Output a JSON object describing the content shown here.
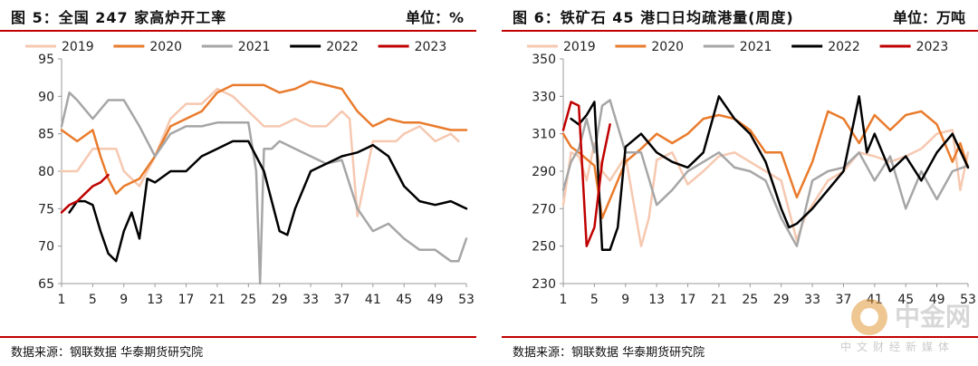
{
  "charts": [
    {
      "title": "图 5：全国 247 家高炉开工率",
      "unit": "单位：%",
      "source": "数据来源：钢联数据 华泰期货研究院"
    },
    {
      "title": "图 6：铁矿石 45 港口日均疏港量(周度)",
      "unit": "单位：万吨",
      "source": "数据来源：钢联数据 华泰期货研究院"
    }
  ],
  "watermark": {
    "title": "中金网",
    "subtitle": "中文财经新媒体"
  },
  "chart_data": [
    {
      "type": "line",
      "title": "图 5：全国 247 家高炉开工率",
      "unit": "%",
      "x_ticks": [
        1,
        5,
        9,
        13,
        17,
        21,
        25,
        29,
        33,
        37,
        41,
        45,
        49,
        53
      ],
      "y_ticks": [
        65,
        70,
        75,
        80,
        85,
        90,
        95
      ],
      "xlim": [
        1,
        53
      ],
      "ylim": [
        65,
        95
      ],
      "legend_position": "top",
      "series": [
        {
          "name": "2019",
          "color": "#f6c8b0",
          "width": 2.5,
          "x": [
            1,
            3,
            5,
            7,
            8,
            9,
            11,
            12,
            13,
            15,
            17,
            19,
            21,
            23,
            25,
            27,
            29,
            31,
            33,
            35,
            37,
            38,
            39,
            41,
            43,
            44,
            45,
            47,
            49,
            51,
            52
          ],
          "y": [
            80,
            80,
            83,
            83,
            83,
            80,
            78,
            80,
            82,
            87,
            89,
            89,
            91,
            90,
            88,
            86,
            86,
            87,
            86,
            86,
            88,
            87,
            74,
            84,
            84,
            84,
            85,
            86,
            84,
            85,
            84
          ]
        },
        {
          "name": "2020",
          "color": "#e97b2c",
          "width": 2.5,
          "x": [
            1,
            3,
            5,
            6,
            7,
            8,
            9,
            11,
            13,
            15,
            17,
            19,
            21,
            23,
            25,
            27,
            29,
            31,
            33,
            35,
            37,
            39,
            41,
            43,
            45,
            47,
            49,
            51,
            53
          ],
          "y": [
            85.5,
            84,
            85.5,
            82,
            79,
            77,
            78,
            79,
            82,
            86,
            87,
            88,
            90.5,
            91.5,
            91.5,
            91.5,
            90.5,
            91,
            92,
            91.5,
            91,
            88,
            86,
            87,
            86.5,
            86.5,
            86,
            85.5,
            85.5
          ]
        },
        {
          "name": "2021",
          "color": "#a6a6a6",
          "width": 2.5,
          "x": [
            1,
            2,
            3,
            5,
            7,
            9,
            11,
            13,
            15,
            17,
            19,
            21,
            23,
            25,
            26,
            26.5,
            27,
            28,
            29,
            31,
            33,
            35,
            37,
            39,
            41,
            43,
            45,
            47,
            49,
            51,
            52,
            53
          ],
          "y": [
            86,
            90.5,
            89.5,
            87,
            89.5,
            89.5,
            86,
            82,
            85,
            86,
            86,
            86.5,
            86.5,
            86.5,
            80,
            65,
            83,
            83,
            84,
            83,
            82,
            81,
            81.5,
            75,
            72,
            73,
            71,
            69.5,
            69.5,
            68,
            68,
            71
          ]
        },
        {
          "name": "2022",
          "color": "#000000",
          "width": 2.5,
          "x": [
            2,
            3,
            4,
            5,
            6,
            7,
            8,
            9,
            10,
            11,
            12,
            13,
            15,
            17,
            19,
            21,
            23,
            25,
            27,
            29,
            30,
            31,
            33,
            35,
            37,
            39,
            40,
            41,
            43,
            45,
            47,
            49,
            51,
            53
          ],
          "y": [
            74.5,
            76,
            76,
            75.5,
            72,
            69,
            68,
            72,
            74.5,
            71,
            79,
            78.5,
            80,
            80,
            82,
            83,
            84,
            84,
            80,
            72,
            71.5,
            75,
            80,
            81,
            82,
            82.5,
            83,
            83.5,
            82,
            78,
            76,
            75.5,
            76,
            75
          ]
        },
        {
          "name": "2023",
          "color": "#c00000",
          "width": 2.5,
          "x": [
            1,
            2,
            3,
            4,
            5,
            6,
            7
          ],
          "y": [
            74.5,
            75.5,
            76,
            77,
            78,
            78.5,
            79.5
          ]
        }
      ]
    },
    {
      "type": "line",
      "title": "图 6：铁矿石 45 港口日均疏港量(周度)",
      "unit": "万吨",
      "x_ticks": [
        1,
        5,
        9,
        13,
        17,
        21,
        25,
        29,
        33,
        37,
        41,
        45,
        49,
        53
      ],
      "y_ticks": [
        230,
        250,
        270,
        290,
        310,
        330,
        350
      ],
      "xlim": [
        1,
        53
      ],
      "ylim": [
        230,
        350
      ],
      "legend_position": "top",
      "series": [
        {
          "name": "2019",
          "color": "#f6c8b0",
          "width": 2.5,
          "x": [
            1,
            2,
            3,
            4,
            5,
            6,
            7,
            9,
            11,
            12,
            13,
            15,
            17,
            19,
            21,
            23,
            25,
            27,
            29,
            31,
            32,
            33,
            35,
            37,
            39,
            41,
            43,
            45,
            47,
            49,
            51,
            52,
            53
          ],
          "y": [
            272,
            300,
            298,
            285,
            305,
            290,
            285,
            298,
            250,
            265,
            296,
            300,
            283,
            290,
            298,
            300,
            295,
            290,
            285,
            253,
            265,
            272,
            285,
            290,
            300,
            298,
            295,
            298,
            302,
            310,
            312,
            280,
            300
          ]
        },
        {
          "name": "2020",
          "color": "#e97b2c",
          "width": 2.5,
          "x": [
            1,
            2,
            3,
            5,
            6,
            7,
            8,
            9,
            11,
            13,
            15,
            17,
            19,
            21,
            23,
            25,
            27,
            29,
            31,
            33,
            35,
            37,
            39,
            41,
            43,
            45,
            47,
            49,
            51,
            52,
            53
          ],
          "y": [
            310,
            303,
            300,
            293,
            265,
            275,
            285,
            295,
            302,
            310,
            305,
            310,
            318,
            320,
            318,
            312,
            300,
            300,
            276,
            295,
            322,
            318,
            305,
            320,
            312,
            320,
            322,
            315,
            295,
            305,
            292
          ]
        },
        {
          "name": "2021",
          "color": "#a6a6a6",
          "width": 2.5,
          "x": [
            1,
            2,
            3,
            4,
            5,
            6,
            7,
            9,
            11,
            13,
            15,
            17,
            19,
            21,
            23,
            25,
            27,
            29,
            31,
            33,
            35,
            37,
            39,
            41,
            43,
            45,
            47,
            49,
            51,
            53
          ],
          "y": [
            280,
            295,
            302,
            318,
            300,
            325,
            328,
            300,
            300,
            272,
            280,
            290,
            295,
            300,
            292,
            290,
            285,
            265,
            250,
            285,
            290,
            292,
            300,
            285,
            298,
            270,
            290,
            275,
            290,
            293
          ]
        },
        {
          "name": "2022",
          "color": "#000000",
          "width": 2.5,
          "x": [
            2,
            3,
            4,
            5,
            6,
            7,
            8,
            9,
            11,
            13,
            15,
            17,
            19,
            21,
            23,
            25,
            27,
            29,
            30,
            31,
            33,
            35,
            37,
            39,
            40,
            41,
            43,
            45,
            47,
            49,
            51,
            53
          ],
          "y": [
            318,
            315,
            320,
            327,
            248,
            248,
            260,
            303,
            310,
            300,
            295,
            292,
            300,
            330,
            318,
            310,
            295,
            270,
            260,
            262,
            270,
            280,
            290,
            330,
            300,
            310,
            290,
            298,
            285,
            300,
            310,
            292
          ]
        },
        {
          "name": "2023",
          "color": "#c00000",
          "width": 2.5,
          "x": [
            1,
            2,
            3,
            4,
            5,
            6,
            7
          ],
          "y": [
            312,
            327,
            325,
            250,
            260,
            295,
            315
          ]
        }
      ]
    }
  ]
}
